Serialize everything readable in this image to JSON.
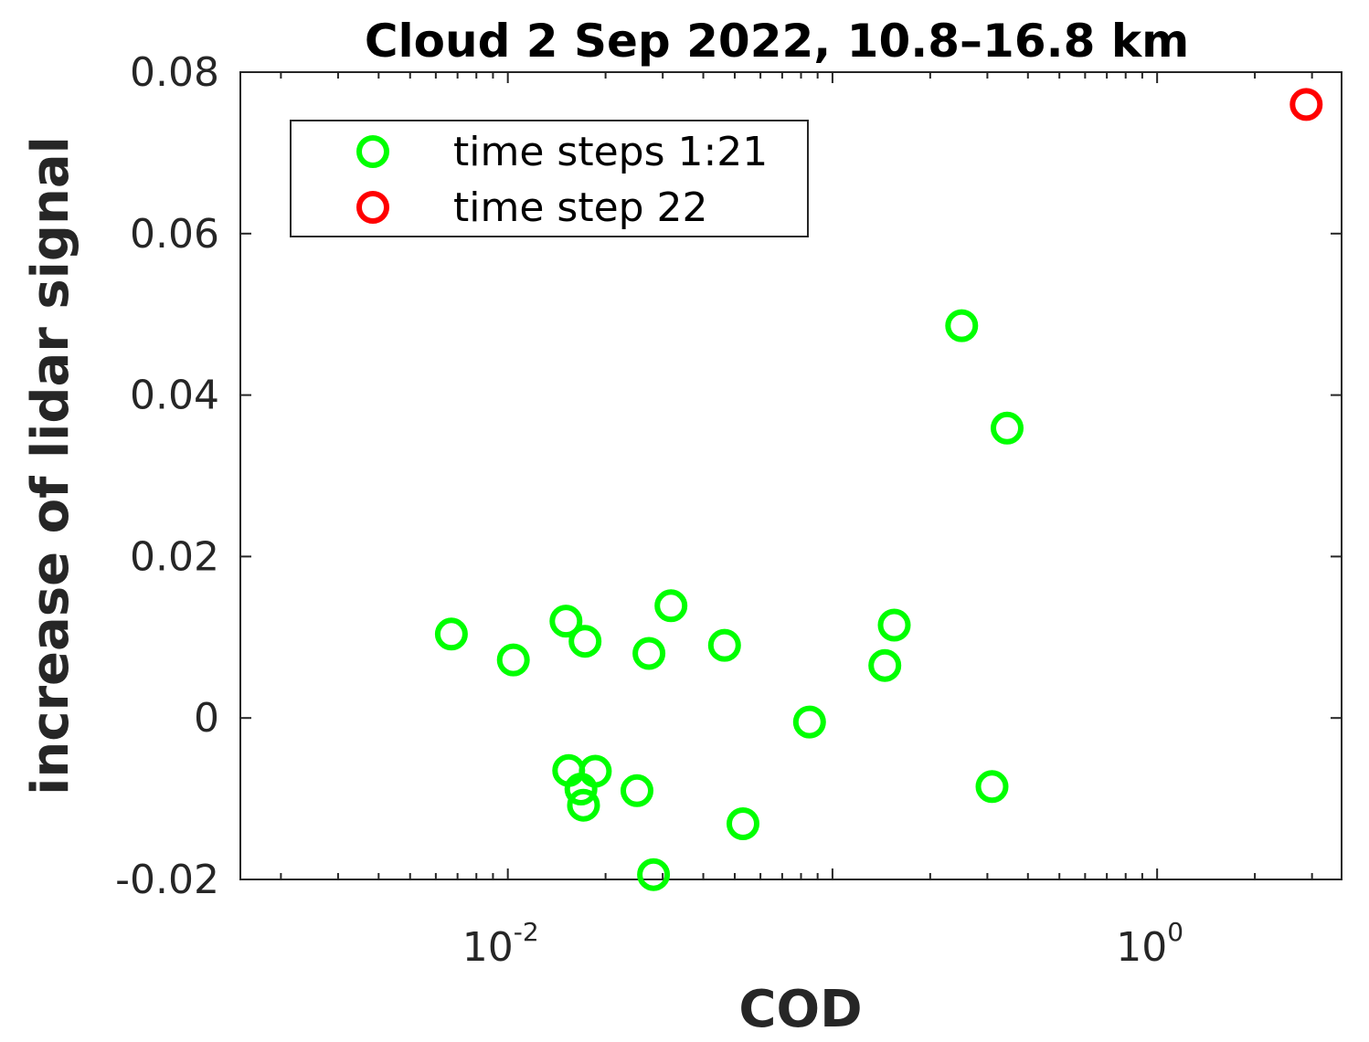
{
  "chart_data": {
    "type": "scatter",
    "title": "Cloud 2 Sep 2022, 10.8–16.8 km",
    "xlabel": "COD",
    "ylabel": "increase of lidar signal",
    "xscale": "log",
    "xlim": [
      0.0015,
      3.7
    ],
    "ylim": [
      -0.02,
      0.08
    ],
    "yticks": [
      {
        "value": -0.02,
        "label": "-0.02"
      },
      {
        "value": 0,
        "label": "0"
      },
      {
        "value": 0.02,
        "label": "0.02"
      },
      {
        "value": 0.04,
        "label": "0.04"
      },
      {
        "value": 0.06,
        "label": "0.06"
      },
      {
        "value": 0.08,
        "label": "0.08"
      }
    ],
    "xticks": [
      {
        "value": 0.01,
        "base": "10",
        "exp": "-2"
      },
      {
        "value": 1,
        "base": "10",
        "exp": "0"
      }
    ],
    "grid": false,
    "legend_position": "top-left",
    "series": [
      {
        "name": "time steps 1:21",
        "color": "#00ff00",
        "marker": "circle-open",
        "points": [
          {
            "x": 0.0067,
            "y": 0.0104
          },
          {
            "x": 0.0104,
            "y": 0.0072
          },
          {
            "x": 0.0151,
            "y": 0.012
          },
          {
            "x": 0.0173,
            "y": 0.0095
          },
          {
            "x": 0.0154,
            "y": -0.0065
          },
          {
            "x": 0.0168,
            "y": -0.0088
          },
          {
            "x": 0.0171,
            "y": -0.0108
          },
          {
            "x": 0.0186,
            "y": -0.0066
          },
          {
            "x": 0.025,
            "y": -0.009
          },
          {
            "x": 0.0272,
            "y": 0.008
          },
          {
            "x": 0.0281,
            "y": -0.0194
          },
          {
            "x": 0.0318,
            "y": 0.0139
          },
          {
            "x": 0.0465,
            "y": 0.009
          },
          {
            "x": 0.053,
            "y": -0.0131
          },
          {
            "x": 0.085,
            "y": -0.0005
          },
          {
            "x": 0.145,
            "y": 0.0065
          },
          {
            "x": 0.155,
            "y": 0.0115
          },
          {
            "x": 0.25,
            "y": 0.0486
          },
          {
            "x": 0.31,
            "y": -0.0085
          },
          {
            "x": 0.345,
            "y": 0.0359
          }
        ]
      },
      {
        "name": "time step 22",
        "color": "#ff0000",
        "marker": "circle-open",
        "points": [
          {
            "x": 2.88,
            "y": 0.076
          }
        ]
      }
    ]
  }
}
